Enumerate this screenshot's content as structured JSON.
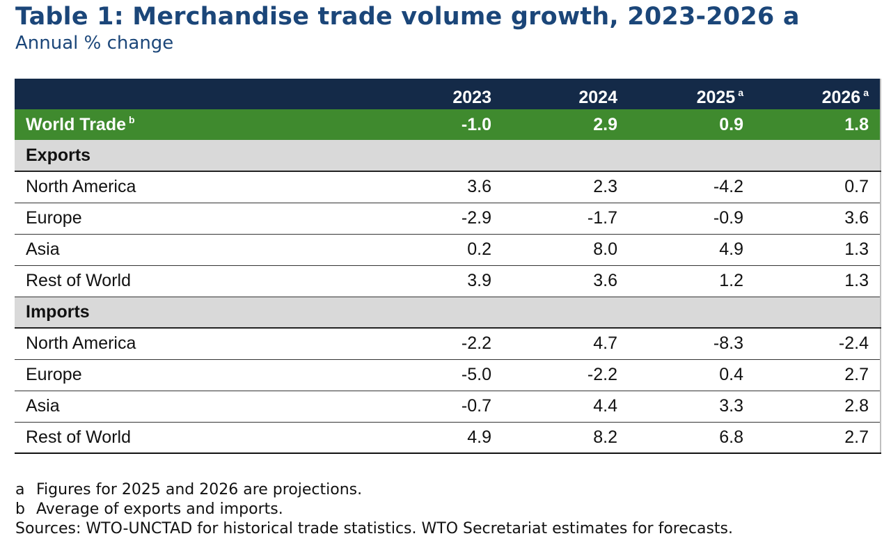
{
  "chart_data": {
    "type": "table",
    "title": "Table 1: Merchandise trade volume growth, 2023-2026 a",
    "subtitle": "Annual % change",
    "columns": [
      "2023",
      "2024",
      "2025",
      "2026"
    ],
    "column_footnotes": [
      "",
      "",
      "a",
      "a"
    ],
    "world": {
      "label": "World Trade",
      "footnote": "b",
      "values": [
        "-1.0",
        "2.9",
        "0.9",
        "1.8"
      ]
    },
    "sections": [
      {
        "name": "Exports",
        "rows": [
          {
            "label": "North America",
            "values": [
              "3.6",
              "2.3",
              "-4.2",
              "0.7"
            ]
          },
          {
            "label": "Europe",
            "values": [
              "-2.9",
              "-1.7",
              "-0.9",
              "3.6"
            ]
          },
          {
            "label": "Asia",
            "values": [
              "0.2",
              "8.0",
              "4.9",
              "1.3"
            ]
          },
          {
            "label": "Rest of World",
            "values": [
              "3.9",
              "3.6",
              "1.2",
              "1.3"
            ]
          }
        ]
      },
      {
        "name": "Imports",
        "rows": [
          {
            "label": "North America",
            "values": [
              "-2.2",
              "4.7",
              "-8.3",
              "-2.4"
            ]
          },
          {
            "label": "Europe",
            "values": [
              "-5.0",
              "-2.2",
              "0.4",
              "2.7"
            ]
          },
          {
            "label": "Asia",
            "values": [
              "-0.7",
              "4.4",
              "3.3",
              "2.8"
            ]
          },
          {
            "label": "Rest of World",
            "values": [
              "4.9",
              "8.2",
              "6.8",
              "2.7"
            ]
          }
        ]
      }
    ],
    "notes": [
      {
        "marker": "a",
        "text": "Figures for 2025 and 2026 are projections."
      },
      {
        "marker": "b",
        "text": "Average of exports and imports."
      }
    ],
    "sources": "Sources: WTO-UNCTAD for historical trade statistics. WTO Secretariat estimates for forecasts."
  },
  "colors": {
    "title": "#1b4679",
    "header_bg": "#142a48",
    "world_bg": "#3f8a2e",
    "section_bg": "#d9d9d9"
  }
}
